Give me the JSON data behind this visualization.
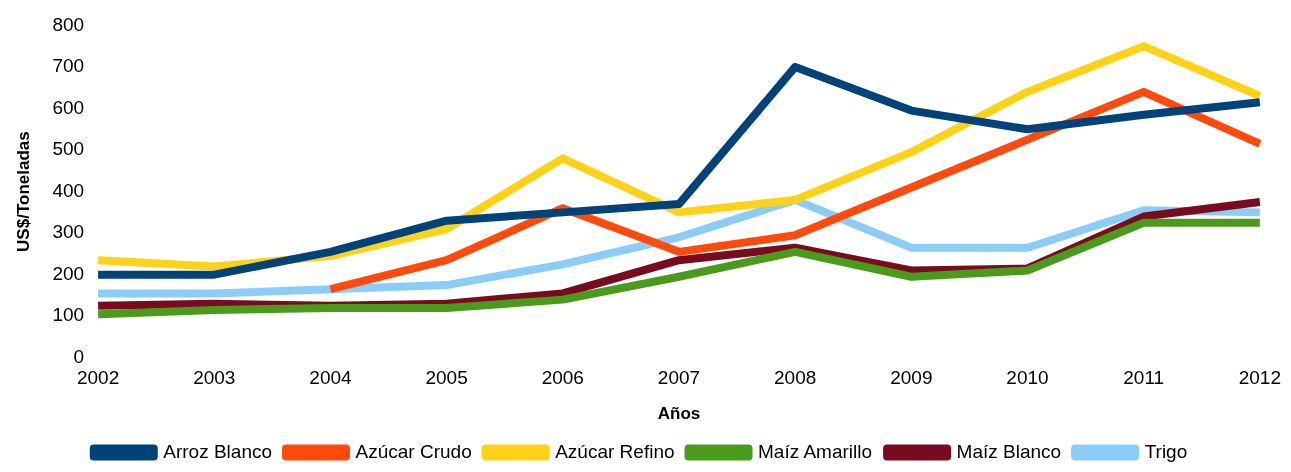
{
  "chart_data": {
    "type": "line",
    "xlabel": "Años",
    "ylabel": "US$/Toneladas",
    "categories": [
      "2002",
      "2003",
      "2004",
      "2005",
      "2006",
      "2007",
      "2008",
      "2009",
      "2010",
      "2011",
      "2012"
    ],
    "ylim": [
      0,
      800
    ],
    "yticks": [
      0,
      100,
      200,
      300,
      400,
      500,
      600,
      700,
      800
    ],
    "grid": false,
    "legend": "bottom",
    "marker": "none",
    "line_style": "solid",
    "series": [
      {
        "name": "Arroz Blanco",
        "color": "#00427a",
        "values": [
          200,
          200,
          255,
          330,
          350,
          370,
          700,
          595,
          550,
          585,
          615
        ]
      },
      {
        "name": "Azúcar Crudo",
        "color": "#ff4a0d",
        "values": [
          null,
          null,
          165,
          235,
          360,
          255,
          295,
          410,
          525,
          640,
          515
        ]
      },
      {
        "name": "Azúcar Refino",
        "color": "#ffd21a",
        "values": [
          235,
          220,
          245,
          310,
          480,
          350,
          380,
          495,
          640,
          750,
          630
        ]
      },
      {
        "name": "Maíz Amarillo",
        "color": "#4a9a1c",
        "values": [
          105,
          115,
          120,
          120,
          140,
          195,
          255,
          195,
          210,
          325,
          325
        ]
      },
      {
        "name": "Maíz Blanco",
        "color": "#7a0a1e",
        "values": [
          125,
          130,
          125,
          130,
          155,
          235,
          265,
          210,
          215,
          340,
          375
        ]
      },
      {
        "name": "Trigo",
        "color": "#8ccdf7",
        "values": [
          155,
          155,
          165,
          175,
          225,
          290,
          380,
          265,
          265,
          355,
          350
        ]
      }
    ]
  }
}
